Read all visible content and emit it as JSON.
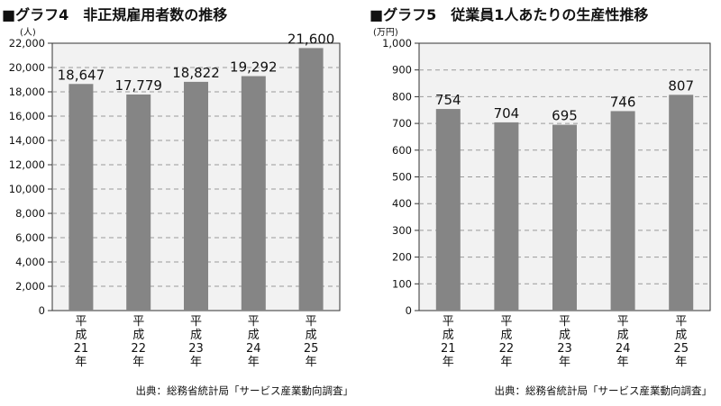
{
  "chart_data": [
    {
      "type": "bar",
      "title": "■グラフ4　非正規雇用者数の推移",
      "unit": "(人)",
      "categories": [
        "平成21年",
        "平成22年",
        "平成23年",
        "平成24年",
        "平成25年"
      ],
      "values": [
        18647,
        17779,
        18822,
        19292,
        21600
      ],
      "value_labels": [
        "18,647",
        "17,779",
        "18,822",
        "19,292",
        "21,600"
      ],
      "ylim": [
        0,
        22000
      ],
      "yticks": [
        0,
        2000,
        4000,
        6000,
        8000,
        10000,
        12000,
        14000,
        16000,
        18000,
        20000,
        22000
      ],
      "ytick_labels": [
        "0",
        "2,000",
        "4,000",
        "6,000",
        "8,000",
        "10,000",
        "12,000",
        "14,000",
        "16,000",
        "18,000",
        "20,000",
        "22,000"
      ],
      "grid": true,
      "source": "出典：総務省統計局「サービス産業動向調査」",
      "bar_color": "#858585",
      "plot_background": "#f2f2f2"
    },
    {
      "type": "bar",
      "title": "■グラフ5　従業員1人あたりの生産性推移",
      "unit": "(万円)",
      "categories": [
        "平成21年",
        "平成22年",
        "平成23年",
        "平成24年",
        "平成25年"
      ],
      "values": [
        754,
        704,
        695,
        746,
        807
      ],
      "value_labels": [
        "754",
        "704",
        "695",
        "746",
        "807"
      ],
      "ylim": [
        0,
        1000
      ],
      "yticks": [
        0,
        100,
        200,
        300,
        400,
        500,
        600,
        700,
        800,
        900,
        1000
      ],
      "ytick_labels": [
        "0",
        "100",
        "200",
        "300",
        "400",
        "500",
        "600",
        "700",
        "800",
        "900",
        "1,000"
      ],
      "grid": true,
      "source": "出典：総務省統計局「サービス産業動向調査」",
      "bar_color": "#858585",
      "plot_background": "#f2f2f2"
    }
  ]
}
